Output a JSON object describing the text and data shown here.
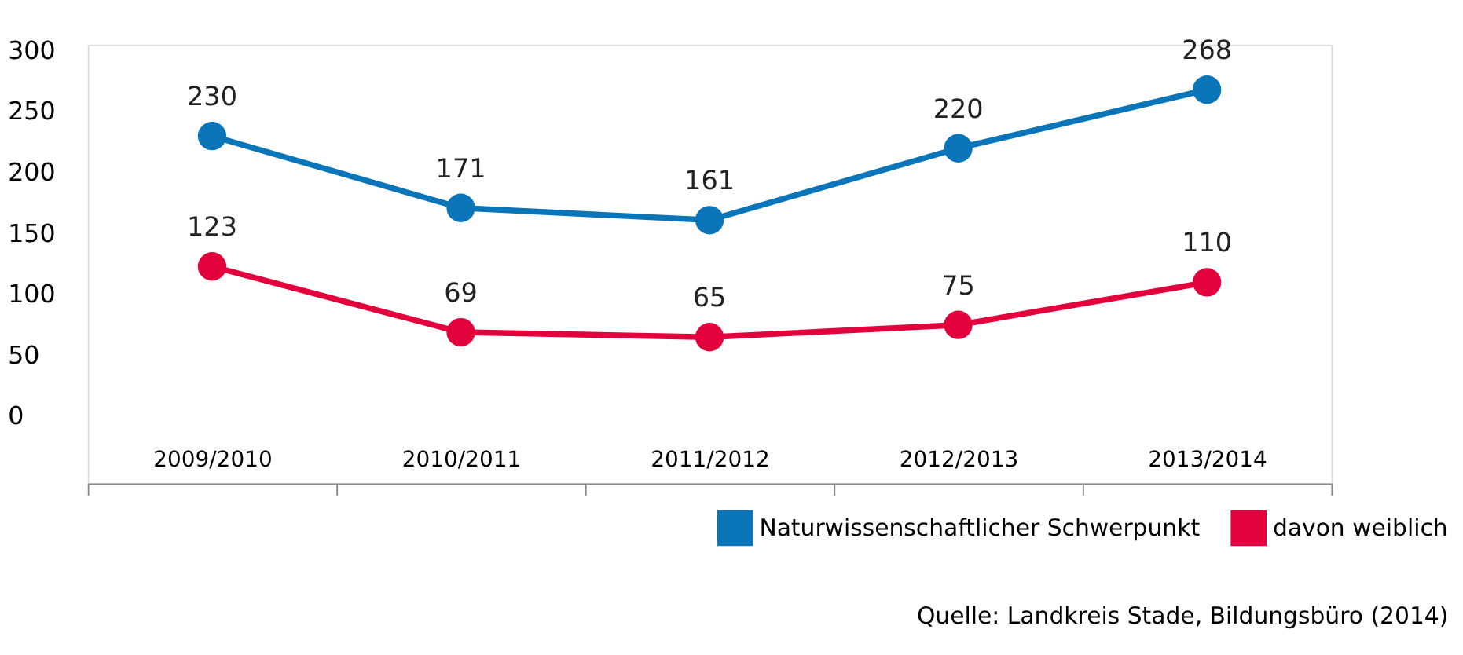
{
  "chart_data": {
    "type": "line",
    "categories": [
      "2009/2010",
      "2010/2011",
      "2011/2012",
      "2012/2013",
      "2013/2014"
    ],
    "series": [
      {
        "name": "Naturwissenschaftlicher Schwerpunkt",
        "color": "#0a75b8",
        "values": [
          230,
          171,
          161,
          220,
          268
        ]
      },
      {
        "name": "davon weiblich",
        "color": "#e2003d",
        "values": [
          123,
          69,
          65,
          75,
          110
        ]
      }
    ],
    "ylim": [
      -55,
      305
    ],
    "yticks": [
      0,
      50,
      100,
      150,
      200,
      250,
      300
    ],
    "data_labels": true,
    "marker": "circle",
    "line_style": "solid",
    "grid": false,
    "legend": "bottom right",
    "annotations": [
      "Quelle: Landkreis Stade, Bildungsbüro (2014)"
    ]
  }
}
